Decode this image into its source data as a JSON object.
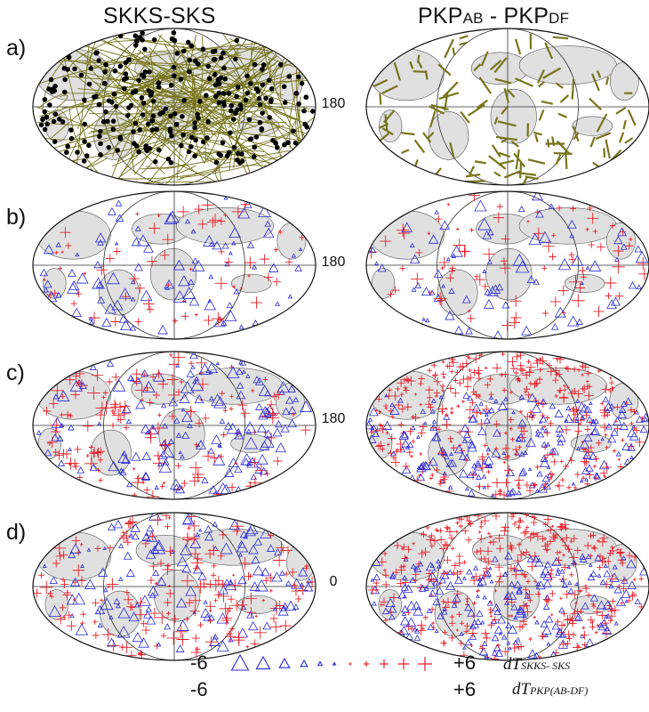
{
  "columns": {
    "left": {
      "title": "SKKS-SKS"
    },
    "right": {
      "title_main_1": "PKP",
      "title_sub_1": "AB",
      "title_sep": " - ",
      "title_main_2": "PKP",
      "title_sub_2": "DF"
    }
  },
  "rows": [
    {
      "label": "a)",
      "center_label": "180",
      "left_map": "SKKS-SKS ray paths and event locations",
      "right_map": "PKP AB-DF ray segments"
    },
    {
      "label": "b)",
      "center_label": "180",
      "left_map": "SKKS-SKS residuals (observed)",
      "right_map": "PKP residuals (observed)"
    },
    {
      "label": "c)",
      "center_label": "180",
      "left_map": "SKKS-SKS residuals (model)",
      "right_map": "PKP residuals (model)"
    },
    {
      "label": "d)",
      "center_label": "0",
      "left_map": "SKKS-SKS residuals, 0 centered",
      "right_map": "PKP residuals, 0 centered"
    }
  ],
  "legend": {
    "row1_min": "-6",
    "row1_max": "+6",
    "row2_min": "-6",
    "row2_max": "+6",
    "skks_label_main": "dT",
    "skks_label_sub": "SKKS- SKS",
    "pkp_label_main": "dT",
    "pkp_label_sub": "PKP(AB-DF)"
  },
  "colors": {
    "negative": "#2a2ad8",
    "positive": "#e8202a",
    "ray": "#77751c",
    "land": "#e0e0e0",
    "outline": "#111111"
  }
}
